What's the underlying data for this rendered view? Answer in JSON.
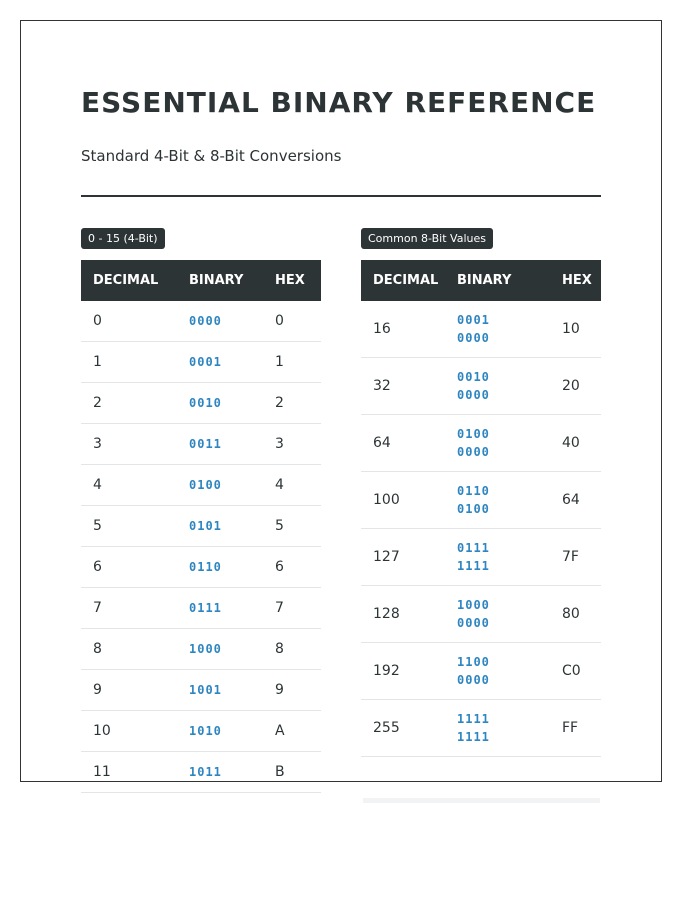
{
  "header": {
    "title": "ESSENTIAL BINARY REFERENCE",
    "subtitle": "Standard 4-Bit & 8-Bit Conversions"
  },
  "tables": [
    {
      "label": "0 - 15 (4-Bit)",
      "columns": [
        "DECIMAL",
        "BINARY",
        "HEX"
      ],
      "rows": [
        [
          "0",
          "0000",
          "0"
        ],
        [
          "1",
          "0001",
          "1"
        ],
        [
          "2",
          "0010",
          "2"
        ],
        [
          "3",
          "0011",
          "3"
        ],
        [
          "4",
          "0100",
          "4"
        ],
        [
          "5",
          "0101",
          "5"
        ],
        [
          "6",
          "0110",
          "6"
        ],
        [
          "7",
          "0111",
          "7"
        ],
        [
          "8",
          "1000",
          "8"
        ],
        [
          "9",
          "1001",
          "9"
        ],
        [
          "10",
          "1010",
          "A"
        ],
        [
          "11",
          "1011",
          "B"
        ]
      ]
    },
    {
      "label": "Common 8-Bit Values",
      "columns": [
        "DECIMAL",
        "BINARY",
        "HEX"
      ],
      "rows": [
        [
          "16",
          "0001 0000",
          "10"
        ],
        [
          "32",
          "0010 0000",
          "20"
        ],
        [
          "64",
          "0100 0000",
          "40"
        ],
        [
          "100",
          "0110 0100",
          "64"
        ],
        [
          "127",
          "0111 1111",
          "7F"
        ],
        [
          "128",
          "1000 0000",
          "80"
        ],
        [
          "192",
          "1100 0000",
          "C0"
        ],
        [
          "255",
          "1111 1111",
          "FF"
        ]
      ]
    }
  ]
}
